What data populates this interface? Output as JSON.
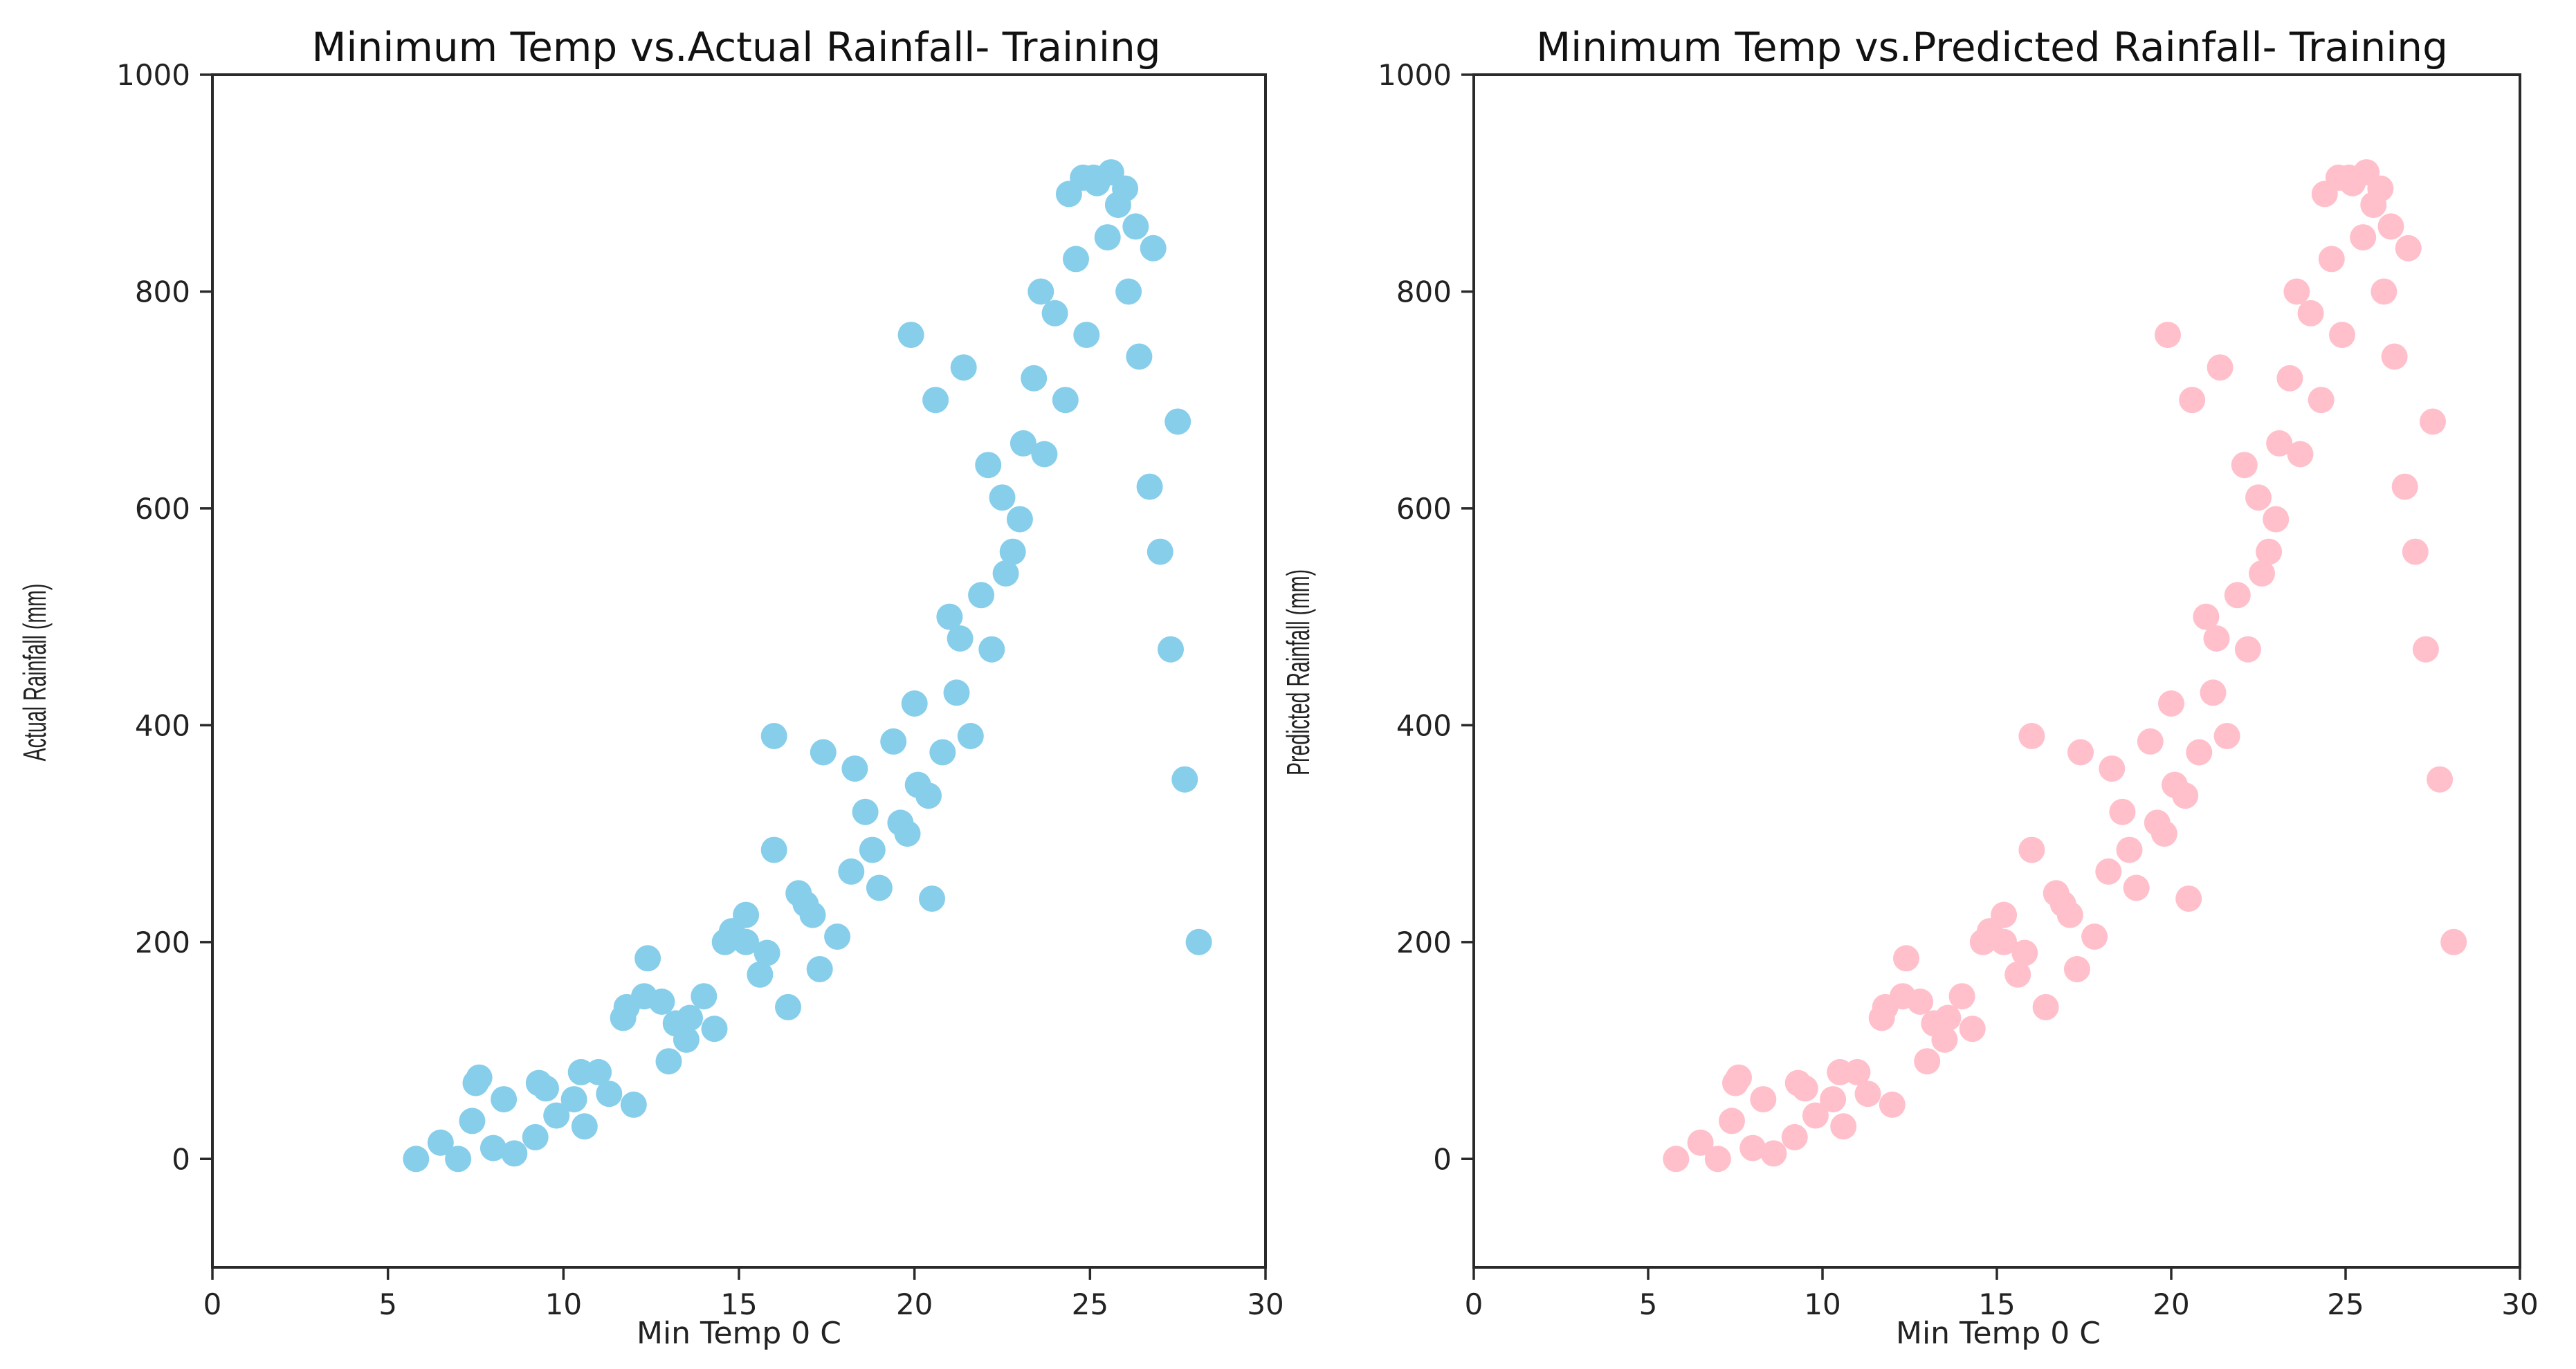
{
  "chart_data": [
    {
      "type": "scatter",
      "title": "Minimum Temp vs.Actual Rainfall- Training",
      "xlabel": "Min Temp 0 C",
      "ylabel": "Actual Rainfall (mm)",
      "xlim": [
        0,
        30
      ],
      "ylim": [
        -100,
        1000
      ],
      "xticks": [
        "0",
        "5",
        "10",
        "15",
        "20",
        "25",
        "30"
      ],
      "yticks": [
        "0",
        "200",
        "400",
        "600",
        "800",
        "1000"
      ],
      "color": "#87CEEB",
      "series": [
        {
          "x": [
            6.5,
            7.0,
            7.4,
            7.5,
            8.0,
            8.6,
            9.2,
            9.5,
            9.8,
            10.3,
            10.6,
            11.0,
            11.3,
            11.7,
            12.0,
            12.4,
            12.8,
            13.0,
            13.5,
            14.0,
            14.3,
            14.8,
            15.2,
            15.6,
            16.0,
            16.4,
            16.9,
            17.3,
            17.8,
            18.2,
            18.6,
            19.0,
            19.4,
            19.8,
            20.1,
            20.5,
            20.8,
            21.2,
            21.6,
            21.9,
            22.2,
            22.5,
            22.8,
            23.1,
            23.4,
            23.7,
            24.0,
            24.3,
            24.6,
            24.9,
            25.2,
            25.5,
            25.8,
            26.1,
            26.4,
            26.7,
            27.0,
            27.3,
            27.7,
            28.1,
            5.8,
            19.9,
            20.6,
            21.4,
            22.1,
            23.0,
            16.0,
            17.4,
            18.3,
            12.3,
            13.6,
            15.8,
            17.1,
            24.4,
            25.1,
            26.0,
            26.8,
            27.5,
            21.3,
            22.6,
            23.6,
            24.8,
            25.6,
            26.3,
            20.0,
            21.0,
            15.2,
            14.6,
            13.2,
            11.8,
            10.5,
            9.3,
            8.3,
            7.6,
            16.7,
            18.8,
            19.6,
            20.4
          ],
          "y": [
            15,
            0,
            35,
            70,
            10,
            5,
            20,
            65,
            40,
            55,
            30,
            80,
            60,
            130,
            50,
            185,
            145,
            90,
            110,
            150,
            120,
            210,
            200,
            170,
            285,
            140,
            235,
            175,
            205,
            265,
            320,
            250,
            385,
            300,
            345,
            240,
            375,
            430,
            390,
            520,
            470,
            610,
            560,
            660,
            720,
            650,
            780,
            700,
            830,
            760,
            900,
            850,
            880,
            800,
            740,
            620,
            560,
            470,
            350,
            200,
            0,
            760,
            700,
            730,
            640,
            590,
            390,
            375,
            360,
            150,
            130,
            190,
            225,
            890,
            905,
            895,
            840,
            680,
            480,
            540,
            800,
            905,
            910,
            860,
            420,
            500,
            225,
            200,
            125,
            140,
            80,
            70,
            55,
            75,
            245,
            285,
            310,
            335
          ]
        }
      ]
    },
    {
      "type": "scatter",
      "title": "Minimum Temp vs.Predicted Rainfall- Training",
      "xlabel": "Min Temp 0 C",
      "ylabel": "Predicted Rainfall (mm)",
      "xlim": [
        0,
        30
      ],
      "ylim": [
        -100,
        1000
      ],
      "xticks": [
        "0",
        "5",
        "10",
        "15",
        "20",
        "25",
        "30"
      ],
      "yticks": [
        "0",
        "200",
        "400",
        "600",
        "800",
        "1000"
      ],
      "color": "#FFC0CB",
      "series": [
        {
          "x": [
            6.5,
            7.0,
            7.4,
            7.5,
            8.0,
            8.6,
            9.2,
            9.5,
            9.8,
            10.3,
            10.6,
            11.0,
            11.3,
            11.7,
            12.0,
            12.4,
            12.8,
            13.0,
            13.5,
            14.0,
            14.3,
            14.8,
            15.2,
            15.6,
            16.0,
            16.4,
            16.9,
            17.3,
            17.8,
            18.2,
            18.6,
            19.0,
            19.4,
            19.8,
            20.1,
            20.5,
            20.8,
            21.2,
            21.6,
            21.9,
            22.2,
            22.5,
            22.8,
            23.1,
            23.4,
            23.7,
            24.0,
            24.3,
            24.6,
            24.9,
            25.2,
            25.5,
            25.8,
            26.1,
            26.4,
            26.7,
            27.0,
            27.3,
            27.7,
            28.1,
            5.8,
            19.9,
            20.6,
            21.4,
            22.1,
            23.0,
            16.0,
            17.4,
            18.3,
            12.3,
            13.6,
            15.8,
            17.1,
            24.4,
            25.1,
            26.0,
            26.8,
            27.5,
            21.3,
            22.6,
            23.6,
            24.8,
            25.6,
            26.3,
            20.0,
            21.0,
            15.2,
            14.6,
            13.2,
            11.8,
            10.5,
            9.3,
            8.3,
            7.6,
            16.7,
            18.8,
            19.6,
            20.4
          ],
          "y": [
            15,
            0,
            35,
            70,
            10,
            5,
            20,
            65,
            40,
            55,
            30,
            80,
            60,
            130,
            50,
            185,
            145,
            90,
            110,
            150,
            120,
            210,
            200,
            170,
            285,
            140,
            235,
            175,
            205,
            265,
            320,
            250,
            385,
            300,
            345,
            240,
            375,
            430,
            390,
            520,
            470,
            610,
            560,
            660,
            720,
            650,
            780,
            700,
            830,
            760,
            900,
            850,
            880,
            800,
            740,
            620,
            560,
            470,
            350,
            200,
            0,
            760,
            700,
            730,
            640,
            590,
            390,
            375,
            360,
            150,
            130,
            190,
            225,
            890,
            905,
            895,
            840,
            680,
            480,
            540,
            800,
            905,
            910,
            860,
            420,
            500,
            225,
            200,
            125,
            140,
            80,
            70,
            55,
            75,
            245,
            285,
            310,
            335
          ]
        }
      ]
    }
  ]
}
